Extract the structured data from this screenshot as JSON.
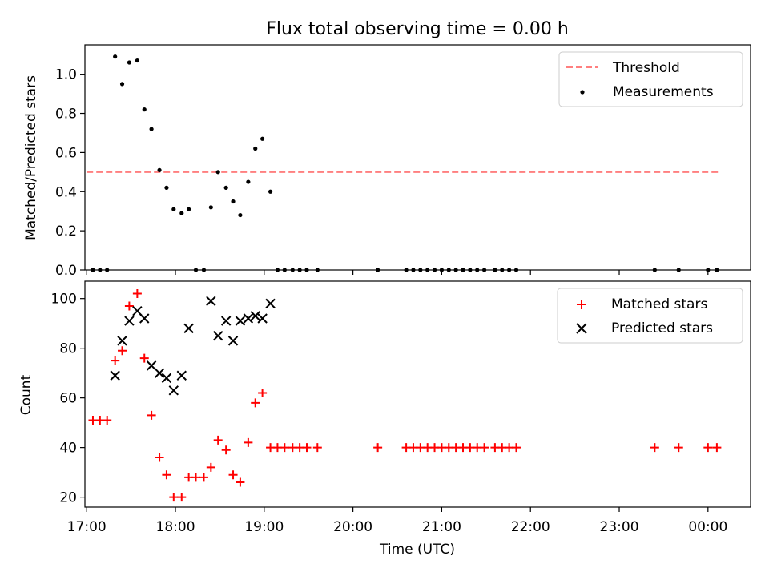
{
  "title": "Flux total observing time = 0.00 h",
  "top_panel": {
    "ylabel": "Matched/Predicted stars",
    "ylim": [
      0,
      1.15
    ],
    "yticks": [
      0.0,
      0.2,
      0.4,
      0.6,
      0.8,
      1.0
    ],
    "ytick_labels": [
      "0.0",
      "0.2",
      "0.4",
      "0.6",
      "0.8",
      "1.0"
    ],
    "legend": {
      "threshold": "Threshold",
      "measurements": "Measurements"
    }
  },
  "bottom_panel": {
    "ylabel": "Count",
    "ylim": [
      16,
      107
    ],
    "yticks": [
      20,
      40,
      60,
      80,
      100
    ],
    "ytick_labels": [
      "20",
      "40",
      "60",
      "80",
      "100"
    ],
    "legend": {
      "matched": "Matched stars",
      "predicted": "Predicted stars"
    }
  },
  "xaxis": {
    "label": "Time (UTC)",
    "xlim": [
      16.98,
      24.48
    ],
    "ticks": [
      17,
      18,
      19,
      20,
      21,
      22,
      23,
      24
    ],
    "tick_labels": [
      "17:00",
      "18:00",
      "19:00",
      "20:00",
      "21:00",
      "22:00",
      "23:00",
      "00:00"
    ]
  },
  "chart_data": [
    {
      "type": "scatter",
      "title": "Flux total observing time = 0.00 h",
      "xlabel": "",
      "ylabel": "Matched/Predicted stars",
      "ylim": [
        0,
        1.15
      ],
      "threshold": {
        "name": "Threshold",
        "y": 0.5,
        "x_range": [
          17.0,
          24.12
        ],
        "color": "#ff7f7f",
        "style": "dashed"
      },
      "series": [
        {
          "name": "Measurements",
          "color": "#000000",
          "x": [
            17.07,
            17.15,
            17.23,
            17.32,
            17.4,
            17.48,
            17.57,
            17.65,
            17.73,
            17.82,
            17.9,
            17.98,
            18.07,
            18.15,
            18.23,
            18.32,
            18.4,
            18.48,
            18.57,
            18.65,
            18.73,
            18.82,
            18.9,
            18.98,
            19.07,
            19.15,
            19.23,
            19.32,
            19.4,
            19.48,
            19.6,
            20.28,
            20.6,
            20.68,
            20.76,
            20.84,
            20.92,
            21.0,
            21.08,
            21.16,
            21.24,
            21.32,
            21.4,
            21.48,
            21.6,
            21.68,
            21.76,
            21.84,
            23.4,
            23.67,
            24.0,
            24.1
          ],
          "y": [
            0,
            0,
            0,
            1.09,
            0.95,
            1.06,
            1.07,
            0.82,
            0.72,
            0.51,
            0.42,
            0.31,
            0.29,
            0.31,
            0,
            0,
            0.32,
            0.5,
            0.42,
            0.35,
            0.28,
            0.45,
            0.62,
            0.67,
            0.4,
            0,
            0,
            0,
            0,
            0,
            0,
            0,
            0,
            0,
            0,
            0,
            0,
            0,
            0,
            0,
            0,
            0,
            0,
            0,
            0,
            0,
            0,
            0,
            0,
            0,
            0,
            0
          ]
        }
      ]
    },
    {
      "type": "scatter",
      "title": "",
      "xlabel": "Time (UTC)",
      "ylabel": "Count",
      "ylim": [
        16,
        107
      ],
      "series": [
        {
          "name": "Matched stars",
          "color": "#ff0000",
          "marker": "+",
          "x": [
            17.07,
            17.15,
            17.23,
            17.32,
            17.4,
            17.48,
            17.57,
            17.65,
            17.73,
            17.82,
            17.9,
            17.98,
            18.07,
            18.15,
            18.23,
            18.32,
            18.4,
            18.48,
            18.57,
            18.65,
            18.73,
            18.82,
            18.9,
            18.98,
            19.07,
            19.15,
            19.23,
            19.32,
            19.4,
            19.48,
            19.6,
            20.28,
            20.6,
            20.68,
            20.76,
            20.84,
            20.92,
            21.0,
            21.08,
            21.16,
            21.24,
            21.32,
            21.4,
            21.48,
            21.6,
            21.68,
            21.76,
            21.84,
            23.4,
            23.67,
            24.0,
            24.1
          ],
          "y": [
            51,
            51,
            51,
            75,
            79,
            97,
            102,
            76,
            53,
            36,
            29,
            20,
            20,
            28,
            28,
            28,
            32,
            43,
            39,
            29,
            26,
            42,
            58,
            62,
            40,
            40,
            40,
            40,
            40,
            40,
            40,
            40,
            40,
            40,
            40,
            40,
            40,
            40,
            40,
            40,
            40,
            40,
            40,
            40,
            40,
            40,
            40,
            40,
            40,
            40,
            40,
            40
          ]
        },
        {
          "name": "Predicted stars",
          "color": "#000000",
          "marker": "x",
          "x": [
            17.32,
            17.4,
            17.48,
            17.57,
            17.65,
            17.73,
            17.82,
            17.9,
            17.98,
            18.07,
            18.15,
            18.4,
            18.48,
            18.57,
            18.65,
            18.73,
            18.82,
            18.9,
            18.98,
            19.07
          ],
          "y": [
            69,
            83,
            91,
            95,
            92,
            73,
            70,
            68,
            63,
            69,
            88,
            99,
            85,
            91,
            83,
            91,
            92,
            93,
            92,
            98
          ]
        }
      ]
    }
  ]
}
